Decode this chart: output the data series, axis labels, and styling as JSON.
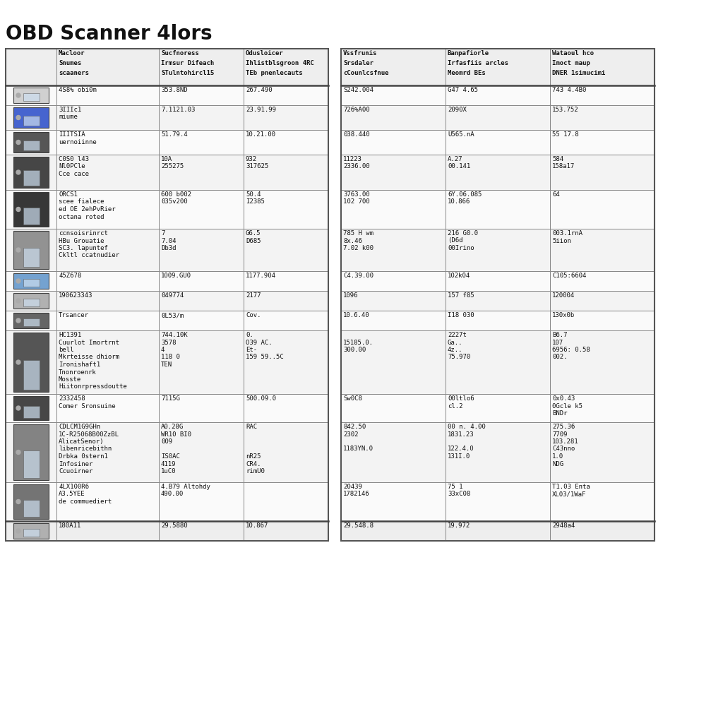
{
  "title": "OBD Scanner 4lors",
  "background_color": "#ffffff",
  "border_color": "#999999",
  "left_headers": [
    "Macloor\nSnumes\nscaaners",
    "Sucfnoress\nIrmsur Difeach\nSTulntohircl15",
    "Odusloicer\nIhlistblsgroon 4RC\nTEb pnenlecauts"
  ],
  "right_headers": [
    "Vssfrunis\nSrsdaler\ncCounlcsfnue",
    "Banpafiorle\nIrfasfiis arcles\nMeomrd BEs",
    "Wataoul hco\nImoct maup\nDNER 1simucimi"
  ],
  "rows": [
    {
      "img_color": "#cccccc",
      "cells_left": [
        "4S8% obi0m",
        "353.8ND",
        "267.490"
      ],
      "cells_right": [
        "S242.004",
        "G47 4.65",
        "743 4.4B0"
      ]
    },
    {
      "img_color": "#3355cc",
      "cells_left": [
        "3IIIc1\nmiume",
        "7.1121.03",
        "23.91.99"
      ],
      "cells_right": [
        "726%A00",
        "2090X",
        "153.752"
      ]
    },
    {
      "img_color": "#444444",
      "cells_left": [
        "IIITSIA\nuernoiinne",
        "51.79.4",
        "10.21.00"
      ],
      "cells_right": [
        "038.440",
        "U565.nA",
        "55 17.8"
      ]
    },
    {
      "img_color": "#333333",
      "cells_left": [
        "C0S0 l43\nNl0PCle\nCce cace",
        "10A\n255275",
        "932\n317625"
      ],
      "cells_right": [
        "11223\n2336.00",
        "A.27\n00.141",
        "584\n158a17"
      ]
    },
    {
      "img_color": "#222222",
      "cells_left": [
        "ORCS1\nscee fialece\ned OE 2ehPvRier\noctana roted",
        "600 b002\n035v200",
        "50.4\nI2385"
      ],
      "cells_right": [
        "3763.00\n102 700",
        "6Y.06.085\n10.866",
        "64"
      ]
    },
    {
      "img_color": "#888888",
      "cells_left": [
        "ccnsoisrinrct\nHBu Grouatie\nSC3. lapuntef\nCkltl ccatnudier",
        "7\n7.04\nDb3d",
        "G6.5\nD685"
      ],
      "cells_right": [
        "785 H wm\n8x.46\n7.02 k00",
        "216 G0.0\n(D6d\n00Irino",
        "003.1rnA\n5iion"
      ]
    },
    {
      "img_color": "#6699cc",
      "cells_left": [
        "45Z678",
        "1009.GU0",
        "1177.904"
      ],
      "cells_right": [
        "C4.39.00",
        "102k04",
        "C105:6604"
      ]
    },
    {
      "img_color": "#aaaaaa",
      "cells_left": [
        "190623343",
        "049774",
        "2177"
      ],
      "cells_right": [
        "1096",
        "157 f85",
        "120004"
      ]
    },
    {
      "img_color": "#555555",
      "cells_left": [
        "Trsancer",
        "0L53/m",
        "Cov."
      ],
      "cells_right": [
        "10.6.40",
        "I18 030",
        "130x0b"
      ]
    },
    {
      "img_color": "#444444",
      "cells_left": [
        "HC1391\nCuurlot Imortrnt\nbell\nMkrteisse dhiorm\nIronishaft1\nTnonroenrk\nMosste\nHiitonrpressdoutte",
        "744.10K\n3578\n4\n118 0\nTEN",
        "0.\nO39 AC.\nEt-\n159 59..5C"
      ],
      "cells_right": [
        "\n15185.0.\n300.00\n",
        "2227t\nGa..\n4z..\n75.970",
        "B6.7\n107\n6956: 0.58\n002."
      ]
    },
    {
      "img_color": "#333333",
      "cells_left": [
        "2332458\nComer Sronsuine",
        "7115G\n",
        "500.09.0"
      ],
      "cells_right": [
        "Sw0C8",
        "00ltlo6\ncl.2",
        "0x0.43\n0Gcle k5\nBNDr"
      ]
    },
    {
      "img_color": "#777777",
      "cells_left": [
        "CDLCM1G9GHn\n1C-R25068B00ZzBL\nAlicatSenor)\nlibenricebithn\nDrbka 0stern1\nInfosiner\nCcuoirner",
        "A0.28G\nWR10 BI0\n009\n\nIS0AC\n4119\n1uC0",
        "RAC\n\n\n\nnR25\nCR4.\nrimU0"
      ],
      "cells_right": [
        "842.50\n2302\n\n1183YN.0",
        "00 n. 4.00\n1831.23\n\n122.4.0\n131I.0",
        "275.36\n7709\n103.281\nC43nno\n1.0\nNDG"
      ]
    },
    {
      "img_color": "#666666",
      "cells_left": [
        "4LX100R6\nA3.5YEE\nde commuediert",
        "4.B79 Altohdy\n490.00",
        ""
      ],
      "cells_right": [
        "20439\n1782146",
        "75 1\n33xC08",
        "T1.03 Enta\nXL03/1WaF"
      ]
    },
    {
      "img_color": "#aaaaaa",
      "cells_left": [
        "180A11",
        "29.5880",
        "10.867"
      ],
      "cells_right": [
        "29.548.8",
        "19.972",
        "2948a4"
      ],
      "is_footer": true
    }
  ]
}
